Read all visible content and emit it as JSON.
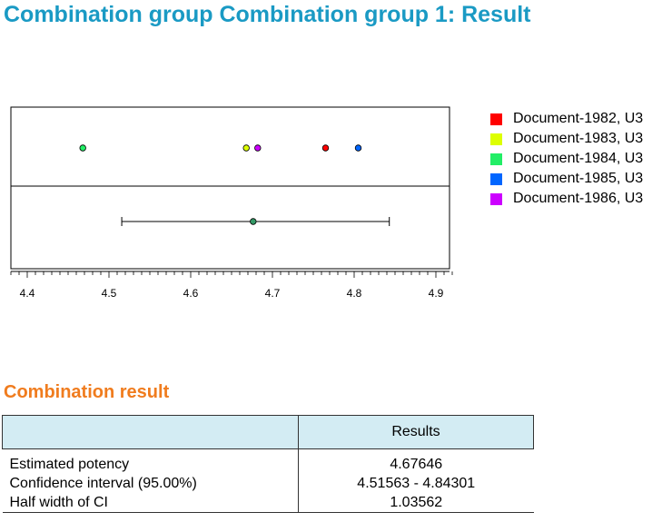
{
  "header": {
    "title": "Combination group Combination group 1: Result"
  },
  "chart_data": {
    "type": "scatter",
    "x_ticks": [
      "4.4",
      "4.5",
      "4.6",
      "4.7",
      "4.8",
      "4.9"
    ],
    "xlim": [
      4.38,
      4.92
    ],
    "series": [
      {
        "name": "Document-1982, U3",
        "x": 4.765,
        "color": "#ff0000"
      },
      {
        "name": "Document-1983, U3",
        "x": 4.668,
        "color": "#ddff00"
      },
      {
        "name": "Document-1984, U3",
        "x": 4.468,
        "color": "#22ee66"
      },
      {
        "name": "Document-1985, U3",
        "x": 4.805,
        "color": "#0066ff"
      },
      {
        "name": "Document-1986, U3",
        "x": 4.682,
        "color": "#cc00ff"
      }
    ],
    "combined": {
      "estimate": 4.67646,
      "ci_low": 4.51563,
      "ci_high": 4.84301,
      "color": "#339966"
    },
    "legend_position": "right",
    "grid": false
  },
  "result": {
    "title": "Combination result",
    "column_header": "Results",
    "rows": [
      {
        "label": "Estimated potency",
        "value": "4.67646"
      },
      {
        "label": "Confidence interval (95.00%)",
        "value": "4.51563 - 4.84301"
      },
      {
        "label": "Half width of CI",
        "value": "1.03562"
      }
    ]
  }
}
